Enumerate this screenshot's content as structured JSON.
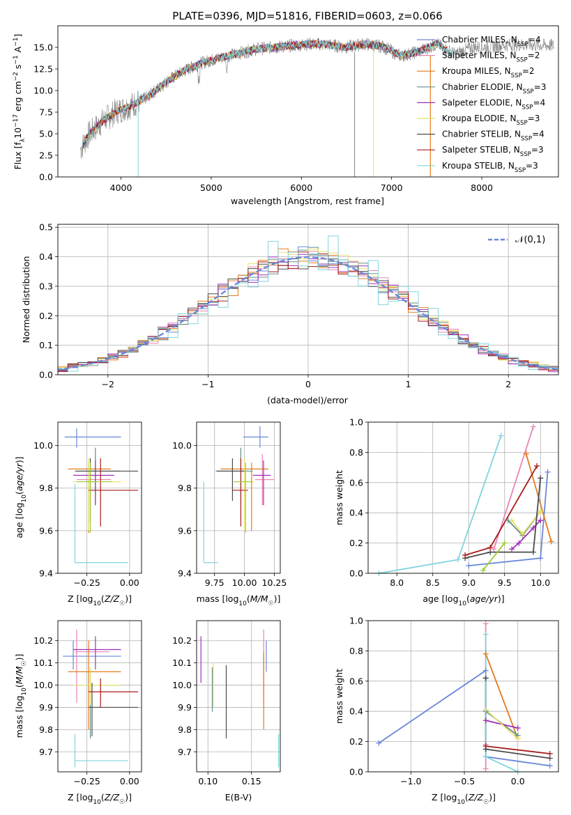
{
  "figure_title": "PLATE=0396, MJD=51816, FIBERID=0603, z=0.066",
  "colors": {
    "series": [
      "#6a87d8",
      "#e884b5",
      "#e57a1a",
      "#5f8f8a",
      "#9e2fb8",
      "#e8e06a",
      "#4a4a4a",
      "#a81a1a",
      "#7fd4dc"
    ],
    "data_spectrum": "#7f7f7f",
    "extra_points": [
      "#9acd32"
    ],
    "grid": "#b0b0b0"
  },
  "chart_data": [
    {
      "id": "spectrum",
      "type": "line",
      "title": "PLATE=0396, MJD=51816, FIBERID=0603, z=0.066",
      "xlabel": "wavelength [Angstrom, rest frame]",
      "ylabel": "Flux [f_λ 10^-17 erg cm^-2 s^-1 A^-1]",
      "xlim": [
        3300,
        8850
      ],
      "ylim": [
        0,
        17.5
      ],
      "xticks": [
        4000,
        5000,
        6000,
        7000,
        8000
      ],
      "yticks": [
        "0.0",
        "2.5",
        "5.0",
        "7.5",
        "10.0",
        "12.5",
        "15.0"
      ],
      "grid": false,
      "legend_position": "right",
      "legend": [
        {
          "model": "Chabrier MILES",
          "n": "4"
        },
        {
          "model": "Salpeter MILES",
          "n": "2"
        },
        {
          "model": "Kroupa MILES",
          "n": "2"
        },
        {
          "model": "Chabrier ELODIE",
          "n": "3"
        },
        {
          "model": "Salpeter ELODIE",
          "n": "4"
        },
        {
          "model": "Kroupa ELODIE",
          "n": "3"
        },
        {
          "model": "Chabrier STELIB",
          "n": "4"
        },
        {
          "model": "Salpeter STELIB",
          "n": "3"
        },
        {
          "model": "Kroupa STELIB",
          "n": "3"
        }
      ],
      "continuum": {
        "x": [
          3550,
          3650,
          3800,
          3950,
          4100,
          4300,
          4500,
          4700,
          4900,
          5100,
          5300,
          5500,
          5700,
          5900,
          6100,
          6300,
          6500,
          6700,
          6900,
          7100,
          7300,
          7500,
          7700,
          7900,
          8100,
          8300,
          8500,
          8800
        ],
        "y": [
          3.2,
          5.0,
          6.5,
          7.6,
          8.2,
          9.3,
          11.0,
          12.3,
          13.2,
          13.8,
          14.3,
          14.8,
          15.0,
          15.2,
          15.4,
          15.3,
          15.0,
          15.4,
          15.1,
          14.0,
          14.5,
          15.4,
          14.2,
          15.0,
          15.1,
          15.3,
          15.3,
          15.2
        ]
      }
    },
    {
      "id": "residuals",
      "type": "histogram",
      "xlabel": "(data-model)/error",
      "ylabel": "Normed distribution",
      "xlim": [
        -2.5,
        2.5
      ],
      "ylim": [
        0,
        0.51
      ],
      "xticks": [
        "−2",
        "−1",
        "0",
        "1",
        "2"
      ],
      "yticks": [
        "0.0",
        "0.1",
        "0.2",
        "0.3",
        "0.4",
        "0.5"
      ],
      "grid": true,
      "legend_position": "top-right",
      "reference": {
        "name": "𝒩(0,1)",
        "mean": 0,
        "sigma": 1
      },
      "bin_width": 0.1,
      "noisy_series_index": 8,
      "peak_values": {
        "0.0": 0.48,
        "-0.3": 0.47,
        "0.4": 0.47
      }
    },
    {
      "id": "age_vs_Z",
      "type": "scatter",
      "xlabel": "Z [log10(Z/Z☉)]",
      "ylabel": "age  [log10(age/yr)]",
      "xlim": [
        -0.42,
        0.07
      ],
      "ylim": [
        9.4,
        10.11
      ],
      "xticks": [
        -0.25,
        0.0
      ],
      "xticklabels": [
        "−0.25",
        "0.00"
      ],
      "yticks": [
        9.4,
        9.6,
        9.8,
        10.0
      ],
      "yticklabels": [
        "9.4",
        "9.6",
        "9.8",
        "10.0"
      ],
      "grid": true,
      "points": [
        {
          "x": -0.31,
          "xe": [
            -0.38,
            -0.05
          ],
          "y": 10.04,
          "ye": [
            9.99,
            10.08
          ],
          "c": 0
        },
        {
          "x": -0.2,
          "xe": [
            -0.31,
            -0.11
          ],
          "y": 9.84,
          "ye": [
            9.72,
            9.96
          ],
          "c": 1
        },
        {
          "x": -0.24,
          "xe": [
            -0.36,
            -0.11
          ],
          "y": 9.89,
          "ye": [
            9.59,
            9.92
          ],
          "c": 2
        },
        {
          "x": -0.2,
          "xe": [
            -0.31,
            -0.06
          ],
          "y": 9.88,
          "ye": [
            9.72,
            9.99
          ],
          "c": 3
        },
        {
          "x": -0.2,
          "xe": [
            -0.33,
            -0.09
          ],
          "y": 9.86,
          "ye": [
            9.72,
            9.93
          ],
          "c": 4
        },
        {
          "x": -0.24,
          "xe": [
            -0.33,
            -0.05
          ],
          "y": 9.83,
          "ye": [
            9.6,
            9.94
          ],
          "c": 5
        },
        {
          "x": -0.23,
          "xe": [
            -0.32,
            0.05
          ],
          "y": 9.88,
          "ye": [
            9.64,
            9.94
          ],
          "c": 6
        },
        {
          "x": -0.17,
          "xe": [
            -0.24,
            0.05
          ],
          "y": 9.79,
          "ye": [
            9.62,
            9.94
          ],
          "c": 7
        },
        {
          "x": -0.32,
          "xe": [
            -0.32,
            -0.01
          ],
          "y": 9.45,
          "ye": [
            9.45,
            9.82
          ],
          "c": 8
        },
        {
          "x": -0.23,
          "xe": [
            -0.31,
            -0.1
          ],
          "y": 9.83,
          "ye": [
            9.59,
            9.92
          ],
          "c": 9
        }
      ]
    },
    {
      "id": "age_vs_mass",
      "type": "scatter",
      "xlabel": "mass [log10(M/M☉)]",
      "ylabel": "",
      "xlim": [
        9.6,
        10.3
      ],
      "ylim": [
        9.4,
        10.11
      ],
      "xticks": [
        9.75,
        10.0,
        10.25
      ],
      "xticklabels": [
        "9.75",
        "10.00",
        "10.25"
      ],
      "yticks": [
        9.4,
        9.6,
        9.8,
        10.0
      ],
      "yticklabels": [
        "9.4",
        "9.6",
        "9.8",
        "10.0"
      ],
      "grid": true,
      "points": [
        {
          "x": 10.13,
          "xe": [
            9.99,
            10.2
          ],
          "y": 10.04,
          "ye": [
            9.99,
            10.09
          ],
          "c": 0
        },
        {
          "x": 10.15,
          "xe": [
            10.09,
            10.25
          ],
          "y": 9.84,
          "ye": [
            9.72,
            9.96
          ],
          "c": 1
        },
        {
          "x": 10.06,
          "xe": [
            9.8,
            10.2
          ],
          "y": 9.89,
          "ye": [
            9.6,
            9.92
          ],
          "c": 2
        },
        {
          "x": 9.97,
          "xe": [
            9.76,
            10.07
          ],
          "y": 9.88,
          "ye": [
            9.72,
            9.99
          ],
          "c": 3
        },
        {
          "x": 10.16,
          "xe": [
            10.07,
            10.22
          ],
          "y": 9.86,
          "ye": [
            9.72,
            9.93
          ],
          "c": 4
        },
        {
          "x": 10.0,
          "xe": [
            9.91,
            10.08
          ],
          "y": 9.83,
          "ye": [
            9.6,
            9.94
          ],
          "c": 5
        },
        {
          "x": 9.9,
          "xe": [
            9.77,
            10.0
          ],
          "y": 9.88,
          "ye": [
            9.74,
            9.94
          ],
          "c": 6
        },
        {
          "x": 9.97,
          "xe": [
            9.9,
            10.03
          ],
          "y": 9.79,
          "ye": [
            9.62,
            9.94
          ],
          "c": 7
        },
        {
          "x": 9.66,
          "xe": [
            9.66,
            9.78
          ],
          "y": 9.45,
          "ye": [
            9.45,
            9.83
          ],
          "c": 8
        },
        {
          "x": 10.01,
          "xe": [
            9.91,
            10.07
          ],
          "y": 9.83,
          "ye": [
            9.59,
            9.92
          ],
          "c": 9
        }
      ]
    },
    {
      "id": "massweight_vs_age",
      "type": "line",
      "xlabel": "age  [log10(age/yr)]",
      "ylabel": "mass weight",
      "xlim": [
        7.6,
        10.25
      ],
      "ylim": [
        0,
        1.0
      ],
      "xticks": [
        8.0,
        8.5,
        9.0,
        9.5,
        10.0
      ],
      "xticklabels": [
        "8.0",
        "8.5",
        "9.0",
        "9.5",
        "10.0"
      ],
      "yticks": [
        0,
        0.2,
        0.4,
        0.6,
        0.8,
        1.0
      ],
      "yticklabels": [
        "0.0",
        "0.2",
        "0.4",
        "0.6",
        "0.8",
        "1.0"
      ],
      "grid": true,
      "series": [
        {
          "c": 0,
          "x": [
            9.0,
            10.0,
            10.1
          ],
          "y": [
            0.05,
            0.1,
            0.67
          ]
        },
        {
          "c": 1,
          "x": [
            9.35,
            9.9
          ],
          "y": [
            0.16,
            0.97
          ]
        },
        {
          "c": 2,
          "x": [
            9.8,
            10.15
          ],
          "y": [
            0.79,
            0.21
          ]
        },
        {
          "c": 3,
          "x": [
            9.55,
            9.75,
            10.0
          ],
          "y": [
            0.35,
            0.25,
            0.41
          ]
        },
        {
          "c": 4,
          "x": [
            9.6,
            9.7,
            9.9,
            10.0
          ],
          "y": [
            0.16,
            0.2,
            0.3,
            0.35
          ]
        },
        {
          "c": 5,
          "x": [
            9.6,
            9.75,
            10.0
          ],
          "y": [
            0.35,
            0.26,
            0.41
          ]
        },
        {
          "c": 6,
          "x": [
            8.95,
            9.3,
            9.9,
            10.0
          ],
          "y": [
            0.1,
            0.14,
            0.14,
            0.63
          ]
        },
        {
          "c": 7,
          "x": [
            8.95,
            9.3,
            9.95
          ],
          "y": [
            0.12,
            0.17,
            0.71
          ]
        },
        {
          "c": 8,
          "x": [
            7.75,
            8.85,
            9.45
          ],
          "y": [
            0.0,
            0.09,
            0.91
          ]
        },
        {
          "c": 9,
          "x": [
            9.2,
            9.5
          ],
          "y": [
            0.02,
            0.2
          ]
        }
      ]
    },
    {
      "id": "mass_vs_Z",
      "type": "scatter",
      "xlabel": "Z [log10(Z/Z☉)]",
      "ylabel": "mass [log10(M/M☉)]",
      "xlim": [
        -0.42,
        0.07
      ],
      "ylim": [
        9.61,
        10.29
      ],
      "xticks": [
        -0.25,
        0.0
      ],
      "xticklabels": [
        "−0.25",
        "0.00"
      ],
      "yticks": [
        9.7,
        9.8,
        9.9,
        10.0,
        10.1,
        10.2
      ],
      "yticklabels": [
        "9.7",
        "9.8",
        "9.9",
        "10.0",
        "10.1",
        "10.2"
      ],
      "grid": true,
      "points": [
        {
          "x": -0.33,
          "xe": [
            -0.39,
            -0.05
          ],
          "y": 10.13,
          "ye": [
            10.07,
            10.2
          ],
          "c": 0
        },
        {
          "x": -0.31,
          "xe": [
            -0.32,
            -0.12
          ],
          "y": 10.15,
          "ye": [
            9.92,
            10.25
          ],
          "c": 1
        },
        {
          "x": -0.24,
          "xe": [
            -0.36,
            -0.05
          ],
          "y": 10.06,
          "ye": [
            9.8,
            10.2
          ],
          "c": 2
        },
        {
          "x": -0.23,
          "xe": [
            -0.32,
            -0.05
          ],
          "y": 10.0,
          "ye": [
            9.76,
            10.07
          ],
          "c": 3
        },
        {
          "x": -0.2,
          "xe": [
            -0.33,
            -0.05
          ],
          "y": 10.16,
          "ye": [
            10.07,
            10.22
          ],
          "c": 4
        },
        {
          "x": -0.23,
          "xe": [
            -0.33,
            -0.05
          ],
          "y": 10.0,
          "ye": [
            9.91,
            10.08
          ],
          "c": 5
        },
        {
          "x": -0.22,
          "xe": [
            -0.24,
            0.05
          ],
          "y": 9.9,
          "ye": [
            9.77,
            10.01
          ],
          "c": 6
        },
        {
          "x": -0.17,
          "xe": [
            -0.24,
            0.05
          ],
          "y": 9.97,
          "ye": [
            9.9,
            10.03
          ],
          "c": 7
        },
        {
          "x": -0.32,
          "xe": [
            -0.32,
            -0.01
          ],
          "y": 9.66,
          "ye": [
            9.63,
            9.78
          ],
          "c": 8
        }
      ]
    },
    {
      "id": "mass_vs_EBV",
      "type": "scatter",
      "xlabel": "E(B-V)",
      "ylabel": "",
      "xlim": [
        0.087,
        0.183
      ],
      "ylim": [
        9.61,
        10.29
      ],
      "xticks": [
        0.1,
        0.15
      ],
      "xticklabels": [
        "0.10",
        "0.15"
      ],
      "yticks": [
        9.7,
        9.8,
        9.9,
        10.0,
        10.1,
        10.2
      ],
      "yticklabels": [
        "9.7",
        "9.8",
        "9.9",
        "10.0",
        "10.1",
        "10.2"
      ],
      "grid": true,
      "points": [
        {
          "x": 0.167,
          "y": 10.13,
          "ye": [
            10.06,
            10.2
          ],
          "c": 0
        },
        {
          "x": 0.164,
          "y": 10.15,
          "ye": [
            9.92,
            10.25
          ],
          "c": 1
        },
        {
          "x": 0.164,
          "y": 10.06,
          "ye": [
            9.8,
            10.15
          ],
          "c": 2
        },
        {
          "x": 0.106,
          "y": 10.0,
          "ye": [
            9.9,
            10.1
          ],
          "c": 5
        },
        {
          "x": 0.092,
          "y": 10.16,
          "ye": [
            10.01,
            10.22
          ],
          "c": 4
        },
        {
          "x": 0.105,
          "y": 10.0,
          "ye": [
            9.88,
            10.08
          ],
          "c": 3
        },
        {
          "x": 0.121,
          "y": 9.9,
          "ye": [
            9.76,
            10.09
          ],
          "c": 6
        },
        {
          "x": 0.181,
          "y": 9.66,
          "ye": [
            9.63,
            9.78
          ],
          "c": 8
        }
      ]
    },
    {
      "id": "massweight_vs_Z",
      "type": "line",
      "xlabel": "Z [log10(Z/Z☉)]",
      "ylabel": "mass weight",
      "xlim": [
        -1.4,
        0.38
      ],
      "ylim": [
        0,
        1.0
      ],
      "xticks": [
        -1.0,
        -0.5,
        0.0
      ],
      "xticklabels": [
        "−1.0",
        "−0.5",
        "0.0"
      ],
      "yticks": [
        0,
        0.2,
        0.4,
        0.6,
        0.8,
        1.0
      ],
      "yticklabels": [
        "0.0",
        "0.2",
        "0.4",
        "0.6",
        "0.8",
        "1.0"
      ],
      "grid": true,
      "series": [
        {
          "c": 0,
          "x": [
            -1.3,
            -0.3,
            -0.3,
            0.3
          ],
          "y": [
            0.19,
            0.67,
            0.1,
            0.04
          ]
        },
        {
          "c": 1,
          "x": [
            -0.3,
            -0.3,
            -0.3
          ],
          "y": [
            0.98,
            0.18,
            0.02
          ]
        },
        {
          "c": 2,
          "x": [
            -0.3,
            0.0
          ],
          "y": [
            0.78,
            0.22
          ]
        },
        {
          "c": 3,
          "x": [
            -0.3,
            -0.3,
            0.0
          ],
          "y": [
            0.62,
            0.4,
            0.24
          ]
        },
        {
          "c": 4,
          "x": [
            -0.3,
            0.0
          ],
          "y": [
            0.34,
            0.29
          ]
        },
        {
          "c": 5,
          "x": [
            -0.3,
            0.0
          ],
          "y": [
            0.41,
            0.22
          ]
        },
        {
          "c": 6,
          "x": [
            -0.3,
            -0.3,
            0.3
          ],
          "y": [
            0.62,
            0.15,
            0.09
          ]
        },
        {
          "c": 7,
          "x": [
            -0.3,
            0.3
          ],
          "y": [
            0.17,
            0.12
          ]
        },
        {
          "c": 8,
          "x": [
            -0.3,
            -0.3,
            0.0
          ],
          "y": [
            0.91,
            0.1,
            0.0
          ]
        }
      ]
    }
  ]
}
